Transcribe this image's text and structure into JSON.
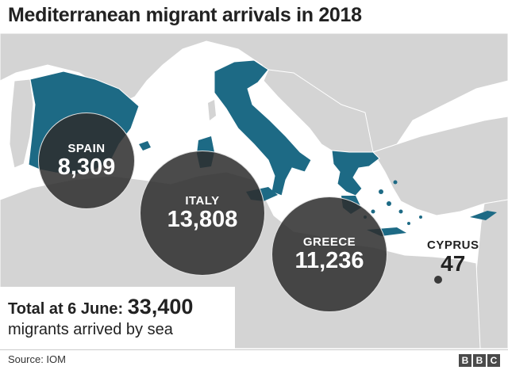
{
  "title": "Mediterranean migrant arrivals in 2018",
  "colors": {
    "highlight_country": "#1d6a85",
    "land": "#d4d4d4",
    "sea": "#ffffff",
    "bubble": "#2d2d2d"
  },
  "countries": [
    {
      "name": "SPAIN",
      "value": "8,309"
    },
    {
      "name": "ITALY",
      "value": "13,808"
    },
    {
      "name": "GREECE",
      "value": "11,236"
    },
    {
      "name": "CYPRUS",
      "value": "47"
    }
  ],
  "total": {
    "label": "Total at 6 June:",
    "value": "33,400",
    "caption": "migrants arrived by sea"
  },
  "source": "Source: IOM",
  "logo": [
    "B",
    "B",
    "C"
  ]
}
